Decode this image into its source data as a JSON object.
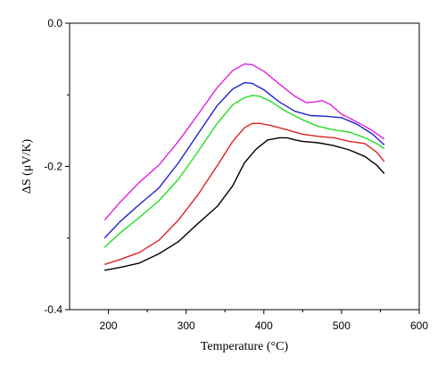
{
  "chart_data": {
    "type": "line",
    "xlabel": "Temperature (°C)",
    "ylabel": "ΔS (μV/K)",
    "xlim": [
      150,
      600
    ],
    "ylim": [
      -0.4,
      0.0
    ],
    "xticks": [
      200,
      300,
      400,
      500,
      600
    ],
    "yticks": [
      0.0,
      -0.2,
      -0.4
    ],
    "xtick_labels": [
      "200",
      "300",
      "400",
      "500",
      "600"
    ],
    "ytick_labels": [
      "0.0",
      "-0.2",
      "-0.4"
    ],
    "grid": false,
    "series": [
      {
        "color": "#e020e0",
        "x": [
          195,
          215,
          240,
          265,
          290,
          315,
          340,
          360,
          375,
          385,
          400,
          420,
          440,
          455,
          465,
          475,
          485,
          500,
          520,
          540,
          555
        ],
        "y": [
          -0.275,
          -0.25,
          -0.222,
          -0.198,
          -0.165,
          -0.128,
          -0.09,
          -0.066,
          -0.057,
          -0.058,
          -0.067,
          -0.085,
          -0.102,
          -0.111,
          -0.11,
          -0.108,
          -0.113,
          -0.127,
          -0.138,
          -0.15,
          -0.162
        ]
      },
      {
        "color": "#2020d0",
        "x": [
          195,
          215,
          240,
          265,
          290,
          315,
          340,
          360,
          375,
          385,
          400,
          420,
          440,
          460,
          480,
          500,
          520,
          540,
          555
        ],
        "y": [
          -0.3,
          -0.277,
          -0.253,
          -0.23,
          -0.195,
          -0.155,
          -0.115,
          -0.092,
          -0.083,
          -0.084,
          -0.093,
          -0.11,
          -0.123,
          -0.129,
          -0.13,
          -0.132,
          -0.141,
          -0.155,
          -0.17
        ]
      },
      {
        "color": "#20e020",
        "x": [
          195,
          215,
          240,
          265,
          290,
          315,
          340,
          360,
          375,
          385,
          395,
          410,
          430,
          450,
          470,
          490,
          510,
          530,
          545,
          555
        ],
        "y": [
          -0.313,
          -0.293,
          -0.271,
          -0.248,
          -0.218,
          -0.18,
          -0.14,
          -0.114,
          -0.104,
          -0.101,
          -0.102,
          -0.11,
          -0.124,
          -0.135,
          -0.144,
          -0.149,
          -0.152,
          -0.16,
          -0.168,
          -0.175
        ]
      },
      {
        "color": "#e02020",
        "x": [
          195,
          215,
          240,
          265,
          290,
          315,
          340,
          360,
          375,
          385,
          395,
          410,
          430,
          450,
          470,
          490,
          510,
          530,
          545,
          555
        ],
        "y": [
          -0.337,
          -0.33,
          -0.32,
          -0.303,
          -0.275,
          -0.24,
          -0.199,
          -0.165,
          -0.146,
          -0.14,
          -0.14,
          -0.143,
          -0.149,
          -0.155,
          -0.158,
          -0.16,
          -0.165,
          -0.168,
          -0.18,
          -0.193
        ]
      },
      {
        "color": "#000000",
        "x": [
          195,
          215,
          240,
          265,
          290,
          315,
          340,
          360,
          375,
          390,
          405,
          420,
          430,
          440,
          450,
          470,
          490,
          510,
          530,
          545,
          555
        ],
        "y": [
          -0.345,
          -0.341,
          -0.335,
          -0.322,
          -0.305,
          -0.28,
          -0.256,
          -0.227,
          -0.195,
          -0.176,
          -0.163,
          -0.16,
          -0.16,
          -0.163,
          -0.165,
          -0.167,
          -0.171,
          -0.177,
          -0.186,
          -0.198,
          -0.21
        ]
      }
    ]
  }
}
